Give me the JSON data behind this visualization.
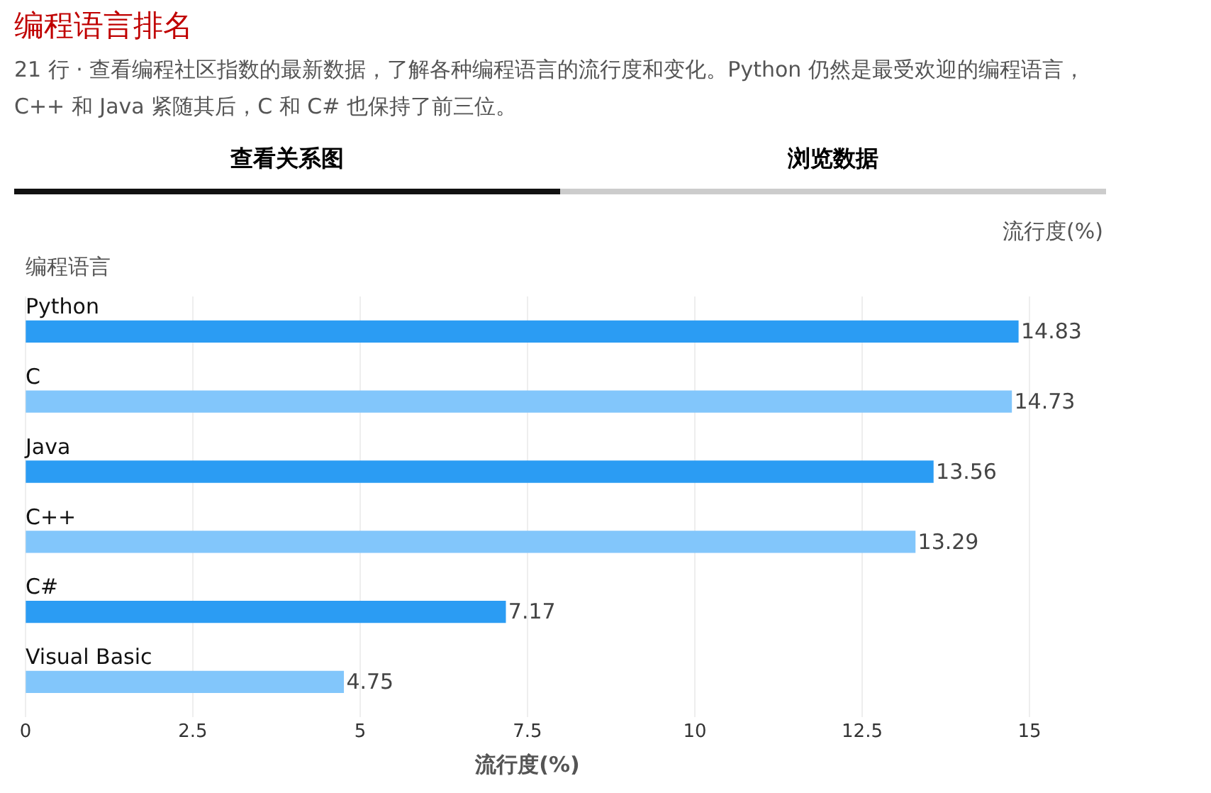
{
  "chart_data": {
    "type": "bar",
    "orientation": "horizontal",
    "title": "编程语言排名",
    "subtitle": "21 行 · 查看编程社区指数的最新数据，了解各种编程语言的流行度和变化。Python 仍然是最受欢迎的编程语言，C++ 和 Java 紧随其后，C 和 C# 也保持了前三位。",
    "annotations": [
      "查看关系图",
      "浏览数据",
      "流行度(%)"
    ],
    "ylabel": "编程语言",
    "xlabel": "流行度(%)",
    "categories": [
      "Python",
      "C",
      "Java",
      "C++",
      "C#",
      "Visual Basic"
    ],
    "values": [
      14.83,
      14.73,
      13.56,
      13.29,
      7.17,
      4.75
    ],
    "colors": [
      "#2b9cf3",
      "#82c6fb",
      "#2b9cf3",
      "#82c6fb",
      "#2b9cf3",
      "#82c6fb"
    ],
    "xlim": [
      0,
      15
    ],
    "xticks": [
      0,
      2.5,
      5,
      7.5,
      10,
      12.5,
      15
    ],
    "grid": "x",
    "data_labels": true,
    "legend": false
  }
}
